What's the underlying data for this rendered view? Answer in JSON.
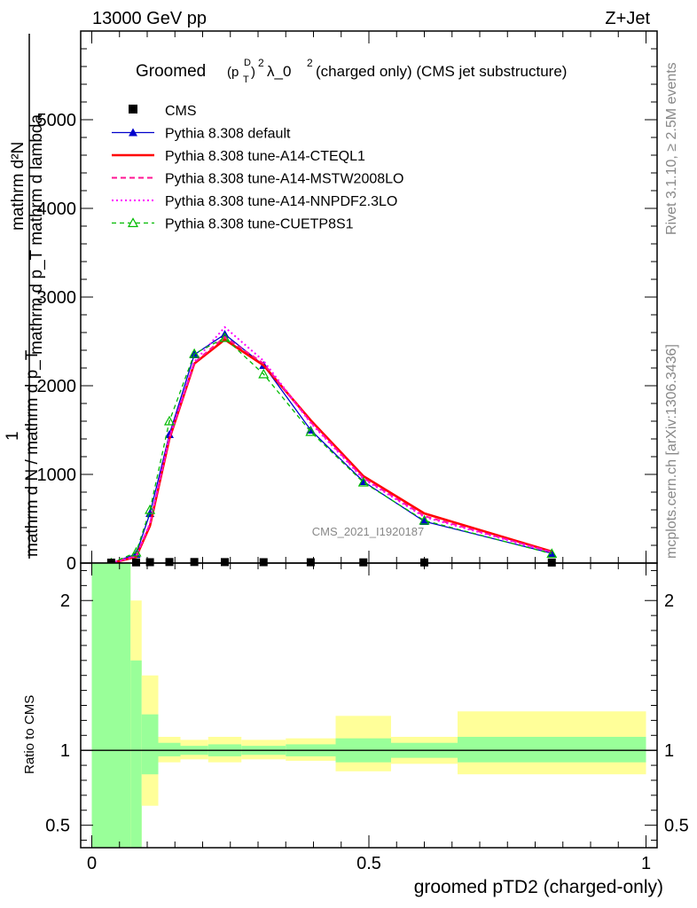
{
  "header": {
    "left": "13000 GeV pp",
    "right": "Z+Jet"
  },
  "side_labels": {
    "rivet": "Rivet 3.1.10, ≥ 2.5M events",
    "mcplots": "mcplots.cern.ch [arXiv:1306.3436]"
  },
  "colors": {
    "cms": "#000000",
    "default": "#0000cc",
    "cteql1": "#ff0000",
    "mstw": "#ff1493",
    "nnpdf": "#ff00ff",
    "cuetp8s1": "#00bb00",
    "band_inner": "#99ff99",
    "band_outer": "#ffff99"
  },
  "chart_data": [
    {
      "type": "line",
      "title_prefix": "Groomed",
      "title_sup": "D",
      "title_sub": "T",
      "title_lambda": "λ_0",
      "title_rest": "(charged only) (CMS jet substructure)",
      "ylabel_top_numer": "mathrm d²N",
      "ylabel_top_denom": "mathrm d p_T mathrm d lambda",
      "ylabel_one": "1",
      "ylabel_bottom": "mathrm d N / mathrm d p_T",
      "watermark": "CMS_2021_I1920187",
      "ylim": [
        0,
        6000
      ],
      "xlim": [
        -0.02,
        1.02
      ],
      "y_ticks": [
        0,
        1000,
        2000,
        3000,
        4000,
        5000
      ],
      "y_tick_labels": [
        "0",
        "1000",
        "2000",
        "3000",
        "4000",
        "5000"
      ],
      "x": [
        0.035,
        0.08,
        0.105,
        0.14,
        0.185,
        0.24,
        0.31,
        0.395,
        0.49,
        0.6,
        0.83
      ],
      "series": [
        {
          "key": "cms",
          "name": "CMS",
          "style": "marker-square",
          "values": [
            5,
            8,
            10,
            12,
            12,
            11,
            10,
            9,
            8,
            7,
            6
          ]
        },
        {
          "key": "default",
          "name": "Pythia 8.308 default",
          "style": "solid-triangle",
          "values": [
            0,
            100,
            560,
            1450,
            2350,
            2580,
            2230,
            1500,
            920,
            470,
            110
          ]
        },
        {
          "key": "cteql1",
          "name": "Pythia 8.308 tune-A14-CTEQL1",
          "style": "solid-thick",
          "values": [
            0,
            70,
            420,
            1400,
            2250,
            2520,
            2230,
            1610,
            980,
            560,
            130
          ]
        },
        {
          "key": "mstw",
          "name": "Pythia 8.308 tune-A14-MSTW2008LO",
          "style": "dashed",
          "values": [
            0,
            80,
            440,
            1410,
            2260,
            2550,
            2250,
            1590,
            960,
            530,
            125
          ]
        },
        {
          "key": "nnpdf",
          "name": "Pythia 8.308 tune-A14-NNPDF2.3LO",
          "style": "dotted",
          "values": [
            0,
            75,
            450,
            1420,
            2270,
            2660,
            2280,
            1580,
            950,
            520,
            120
          ]
        },
        {
          "key": "cuetp8s1",
          "name": "Pythia 8.308 tune-CUETP8S1",
          "style": "dashed-triangle-open",
          "values": [
            0,
            120,
            600,
            1600,
            2360,
            2540,
            2130,
            1480,
            910,
            480,
            105
          ]
        }
      ]
    },
    {
      "type": "area",
      "ylabel": "Ratio to CMS",
      "xlabel": "groomed pTD2 (charged-only)",
      "ylim": [
        0.35,
        2.25
      ],
      "xlim": [
        -0.02,
        1.02
      ],
      "y_ticks": [
        0.5,
        1,
        2
      ],
      "y_tick_labels": [
        "0.5",
        "1",
        "2"
      ],
      "x_ticks": [
        0,
        0.5,
        1
      ],
      "x_tick_labels": [
        "0",
        "0.5",
        "1"
      ],
      "bins": [
        {
          "x0": 0.0,
          "x1": 0.07,
          "inner": [
            0.3,
            2.5
          ],
          "outer": [
            0.3,
            2.5
          ]
        },
        {
          "x0": 0.07,
          "x1": 0.09,
          "inner": [
            0.35,
            1.6
          ],
          "outer": [
            0.35,
            2.0
          ]
        },
        {
          "x0": 0.09,
          "x1": 0.12,
          "inner": [
            0.84,
            1.24
          ],
          "outer": [
            0.63,
            1.5
          ]
        },
        {
          "x0": 0.12,
          "x1": 0.16,
          "inner": [
            0.96,
            1.05
          ],
          "outer": [
            0.92,
            1.09
          ]
        },
        {
          "x0": 0.16,
          "x1": 0.21,
          "inner": [
            0.97,
            1.03
          ],
          "outer": [
            0.94,
            1.07
          ]
        },
        {
          "x0": 0.21,
          "x1": 0.27,
          "inner": [
            0.96,
            1.04
          ],
          "outer": [
            0.92,
            1.09
          ]
        },
        {
          "x0": 0.27,
          "x1": 0.35,
          "inner": [
            0.97,
            1.03
          ],
          "outer": [
            0.94,
            1.07
          ]
        },
        {
          "x0": 0.35,
          "x1": 0.44,
          "inner": [
            0.96,
            1.04
          ],
          "outer": [
            0.93,
            1.08
          ]
        },
        {
          "x0": 0.44,
          "x1": 0.54,
          "inner": [
            0.92,
            1.08
          ],
          "outer": [
            0.86,
            1.23
          ]
        },
        {
          "x0": 0.54,
          "x1": 0.66,
          "inner": [
            0.95,
            1.05
          ],
          "outer": [
            0.91,
            1.09
          ]
        },
        {
          "x0": 0.66,
          "x1": 1.0,
          "inner": [
            0.92,
            1.09
          ],
          "outer": [
            0.84,
            1.26
          ]
        }
      ]
    }
  ]
}
